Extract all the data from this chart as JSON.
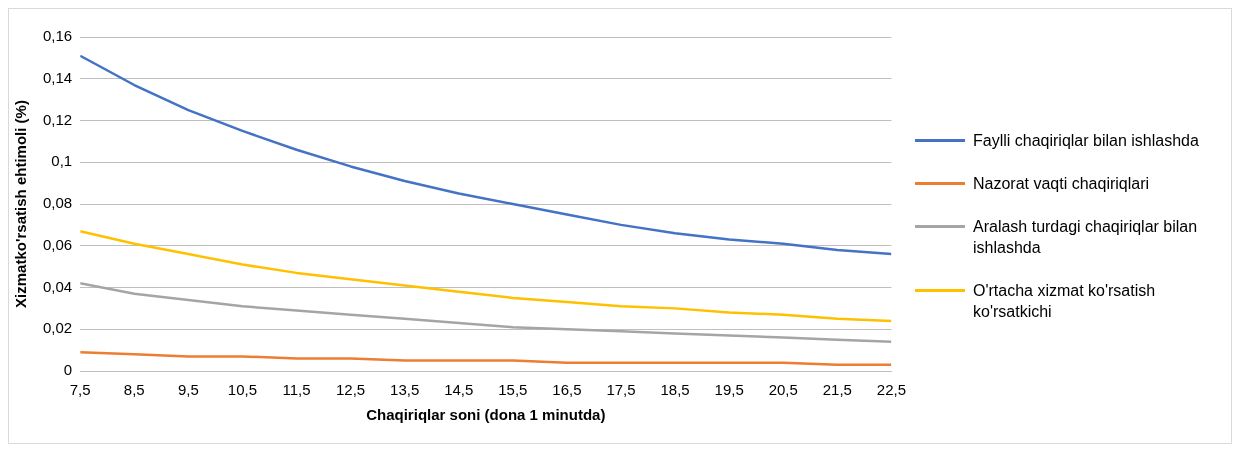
{
  "chart_data": {
    "type": "line",
    "xlabel": "Chaqiriqlar soni (dona 1 minutda)",
    "ylabel": "Xizmatko'rsatish ehtimoli (%)",
    "x": [
      7.5,
      8.5,
      9.5,
      10.5,
      11.5,
      12.5,
      13.5,
      14.5,
      15.5,
      16.5,
      17.5,
      18.5,
      19.5,
      20.5,
      21.5,
      22.5
    ],
    "xlim": [
      7.5,
      22.5
    ],
    "xticks": [
      {
        "value": 7.5,
        "label": "7,5"
      },
      {
        "value": 8.5,
        "label": "8,5"
      },
      {
        "value": 9.5,
        "label": "9,5"
      },
      {
        "value": 10.5,
        "label": "10,5"
      },
      {
        "value": 11.5,
        "label": "11,5"
      },
      {
        "value": 12.5,
        "label": "12,5"
      },
      {
        "value": 13.5,
        "label": "13,5"
      },
      {
        "value": 14.5,
        "label": "14,5"
      },
      {
        "value": 15.5,
        "label": "15,5"
      },
      {
        "value": 16.5,
        "label": "16,5"
      },
      {
        "value": 17.5,
        "label": "17,5"
      },
      {
        "value": 18.5,
        "label": "18,5"
      },
      {
        "value": 19.5,
        "label": "19,5"
      },
      {
        "value": 20.5,
        "label": "20,5"
      },
      {
        "value": 21.5,
        "label": "21,5"
      },
      {
        "value": 22.5,
        "label": "22,5"
      }
    ],
    "ylim": [
      0,
      0.16
    ],
    "yticks": [
      0,
      {
        "value": 0.02,
        "label": "0,02"
      },
      {
        "value": 0.04,
        "label": "0,04"
      },
      {
        "value": 0.06,
        "label": "0,06"
      },
      {
        "value": 0.08,
        "label": "0,08"
      },
      {
        "value": 0.1,
        "label": "0,1"
      },
      {
        "value": 0.12,
        "label": "0,12"
      },
      {
        "value": 0.14,
        "label": "0,14"
      },
      {
        "value": 0.16,
        "label": "0,16"
      }
    ],
    "grid": "y",
    "legend": "right",
    "marker": "none",
    "line_style": "solid",
    "series": [
      {
        "name": "Faylli chaqiriqlar bilan ishlashda",
        "color": "#4472c4",
        "values": [
          0.151,
          0.137,
          0.125,
          0.115,
          0.106,
          0.098,
          0.091,
          0.085,
          0.08,
          0.075,
          0.07,
          0.066,
          0.063,
          0.061,
          0.058,
          0.056
        ]
      },
      {
        "name": "Nazorat vaqti chaqiriqlari",
        "color": "#ed7d31",
        "values": [
          0.009,
          0.008,
          0.007,
          0.007,
          0.006,
          0.006,
          0.005,
          0.005,
          0.005,
          0.004,
          0.004,
          0.004,
          0.004,
          0.004,
          0.003,
          0.003
        ]
      },
      {
        "name": "Aralash turdagi chaqiriqlar bilan ishlashda",
        "color": "#a5a5a5",
        "values": [
          0.042,
          0.037,
          0.034,
          0.031,
          0.029,
          0.027,
          0.025,
          0.023,
          0.021,
          0.02,
          0.019,
          0.018,
          0.017,
          0.016,
          0.015,
          0.014
        ]
      },
      {
        "name": "O'rtacha xizmat ko'rsatish ko'rsatkichi",
        "color": "#ffc000",
        "values": [
          0.067,
          0.061,
          0.056,
          0.051,
          0.047,
          0.044,
          0.041,
          0.038,
          0.035,
          0.033,
          0.031,
          0.03,
          0.028,
          0.027,
          0.025,
          0.024
        ]
      }
    ]
  }
}
